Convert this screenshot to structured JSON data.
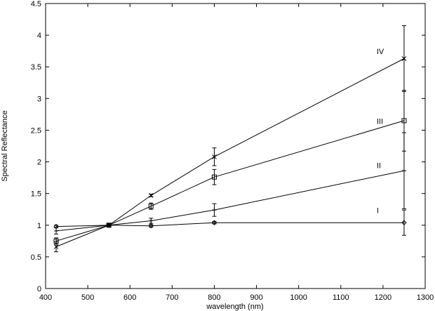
{
  "chart_data": {
    "type": "line",
    "title": "",
    "xlabel": "wavelength (nm)",
    "ylabel": "Spectral Reflectance",
    "xlim": [
      400,
      1300
    ],
    "ylim": [
      0,
      4.5
    ],
    "xticks": [
      400,
      500,
      600,
      700,
      800,
      900,
      1000,
      1100,
      1200,
      1300
    ],
    "yticks": [
      0,
      0.5,
      1,
      1.5,
      2,
      2.5,
      3,
      3.5,
      4,
      4.5
    ],
    "xtick_labels": [
      "400",
      "500",
      "600",
      "700",
      "800",
      "900",
      "1000",
      "1100",
      "1200",
      "1300"
    ],
    "ytick_labels": [
      "0",
      "0.5",
      "1",
      "1.5",
      "2",
      "2.5",
      "3",
      "3.5",
      "4",
      "4.5"
    ],
    "grid": false,
    "legend": "none",
    "series": [
      {
        "name": "I",
        "marker": "diamond",
        "label_at": [
          1185,
          1.19
        ],
        "x": [
          425,
          550,
          650,
          800,
          1250
        ],
        "y": [
          0.98,
          1.0,
          0.99,
          1.04,
          1.04
        ],
        "err": [
          0.02,
          0.01,
          0.02,
          0.02,
          0.2
        ]
      },
      {
        "name": "II",
        "marker": "plus",
        "label_at": [
          1185,
          1.9
        ],
        "x": [
          425,
          550,
          650,
          800,
          1250
        ],
        "y": [
          0.91,
          1.0,
          1.07,
          1.24,
          1.86
        ],
        "err": [
          0.05,
          0.01,
          0.04,
          0.1,
          0.6
        ]
      },
      {
        "name": "III",
        "marker": "square",
        "label_at": [
          1185,
          2.6
        ],
        "x": [
          425,
          550,
          650,
          800,
          1250
        ],
        "y": [
          0.75,
          1.0,
          1.3,
          1.76,
          2.65
        ],
        "err": [
          0.05,
          0.01,
          0.05,
          0.12,
          0.48
        ]
      },
      {
        "name": "IV",
        "marker": "cross",
        "label_at": [
          1185,
          3.7
        ],
        "x": [
          425,
          550,
          650,
          800,
          1250
        ],
        "y": [
          0.66,
          1.0,
          1.47,
          2.08,
          3.63
        ],
        "err": [
          0.08,
          0.01,
          0.02,
          0.14,
          0.52
        ]
      }
    ]
  }
}
